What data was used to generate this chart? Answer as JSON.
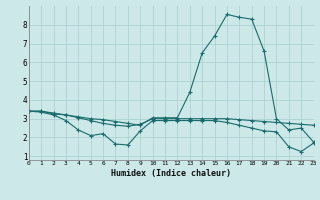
{
  "x": [
    0,
    1,
    2,
    3,
    4,
    5,
    6,
    7,
    8,
    9,
    10,
    11,
    12,
    13,
    14,
    15,
    16,
    17,
    18,
    19,
    20,
    21,
    22,
    23
  ],
  "line1": [
    3.4,
    3.4,
    3.25,
    3.2,
    3.05,
    2.9,
    2.75,
    2.65,
    2.6,
    2.7,
    3.0,
    3.0,
    3.0,
    3.0,
    3.0,
    3.0,
    3.0,
    2.95,
    2.9,
    2.85,
    2.8,
    2.75,
    2.7,
    2.65
  ],
  "line2": [
    3.4,
    3.35,
    3.2,
    2.9,
    2.4,
    2.1,
    2.2,
    1.65,
    1.6,
    2.35,
    2.9,
    2.9,
    2.9,
    2.9,
    2.9,
    2.9,
    2.8,
    2.65,
    2.5,
    2.35,
    2.3,
    1.5,
    1.25,
    1.7
  ],
  "line3": [
    3.4,
    3.4,
    3.3,
    3.2,
    3.1,
    3.0,
    2.95,
    2.85,
    2.75,
    2.65,
    3.05,
    3.05,
    3.05,
    4.4,
    6.5,
    7.4,
    8.55,
    8.4,
    8.3,
    6.6,
    3.0,
    2.4,
    2.5,
    1.75
  ],
  "xlabel": "Humidex (Indice chaleur)",
  "xlim": [
    0,
    23
  ],
  "ylim": [
    0.8,
    9.0
  ],
  "yticks": [
    1,
    2,
    3,
    4,
    5,
    6,
    7,
    8
  ],
  "xticks": [
    0,
    1,
    2,
    3,
    4,
    5,
    6,
    7,
    8,
    9,
    10,
    11,
    12,
    13,
    14,
    15,
    16,
    17,
    18,
    19,
    20,
    21,
    22,
    23
  ],
  "line_color": "#1a6b6b",
  "bg_color": "#cce8e8",
  "grid_color": "#aacece"
}
